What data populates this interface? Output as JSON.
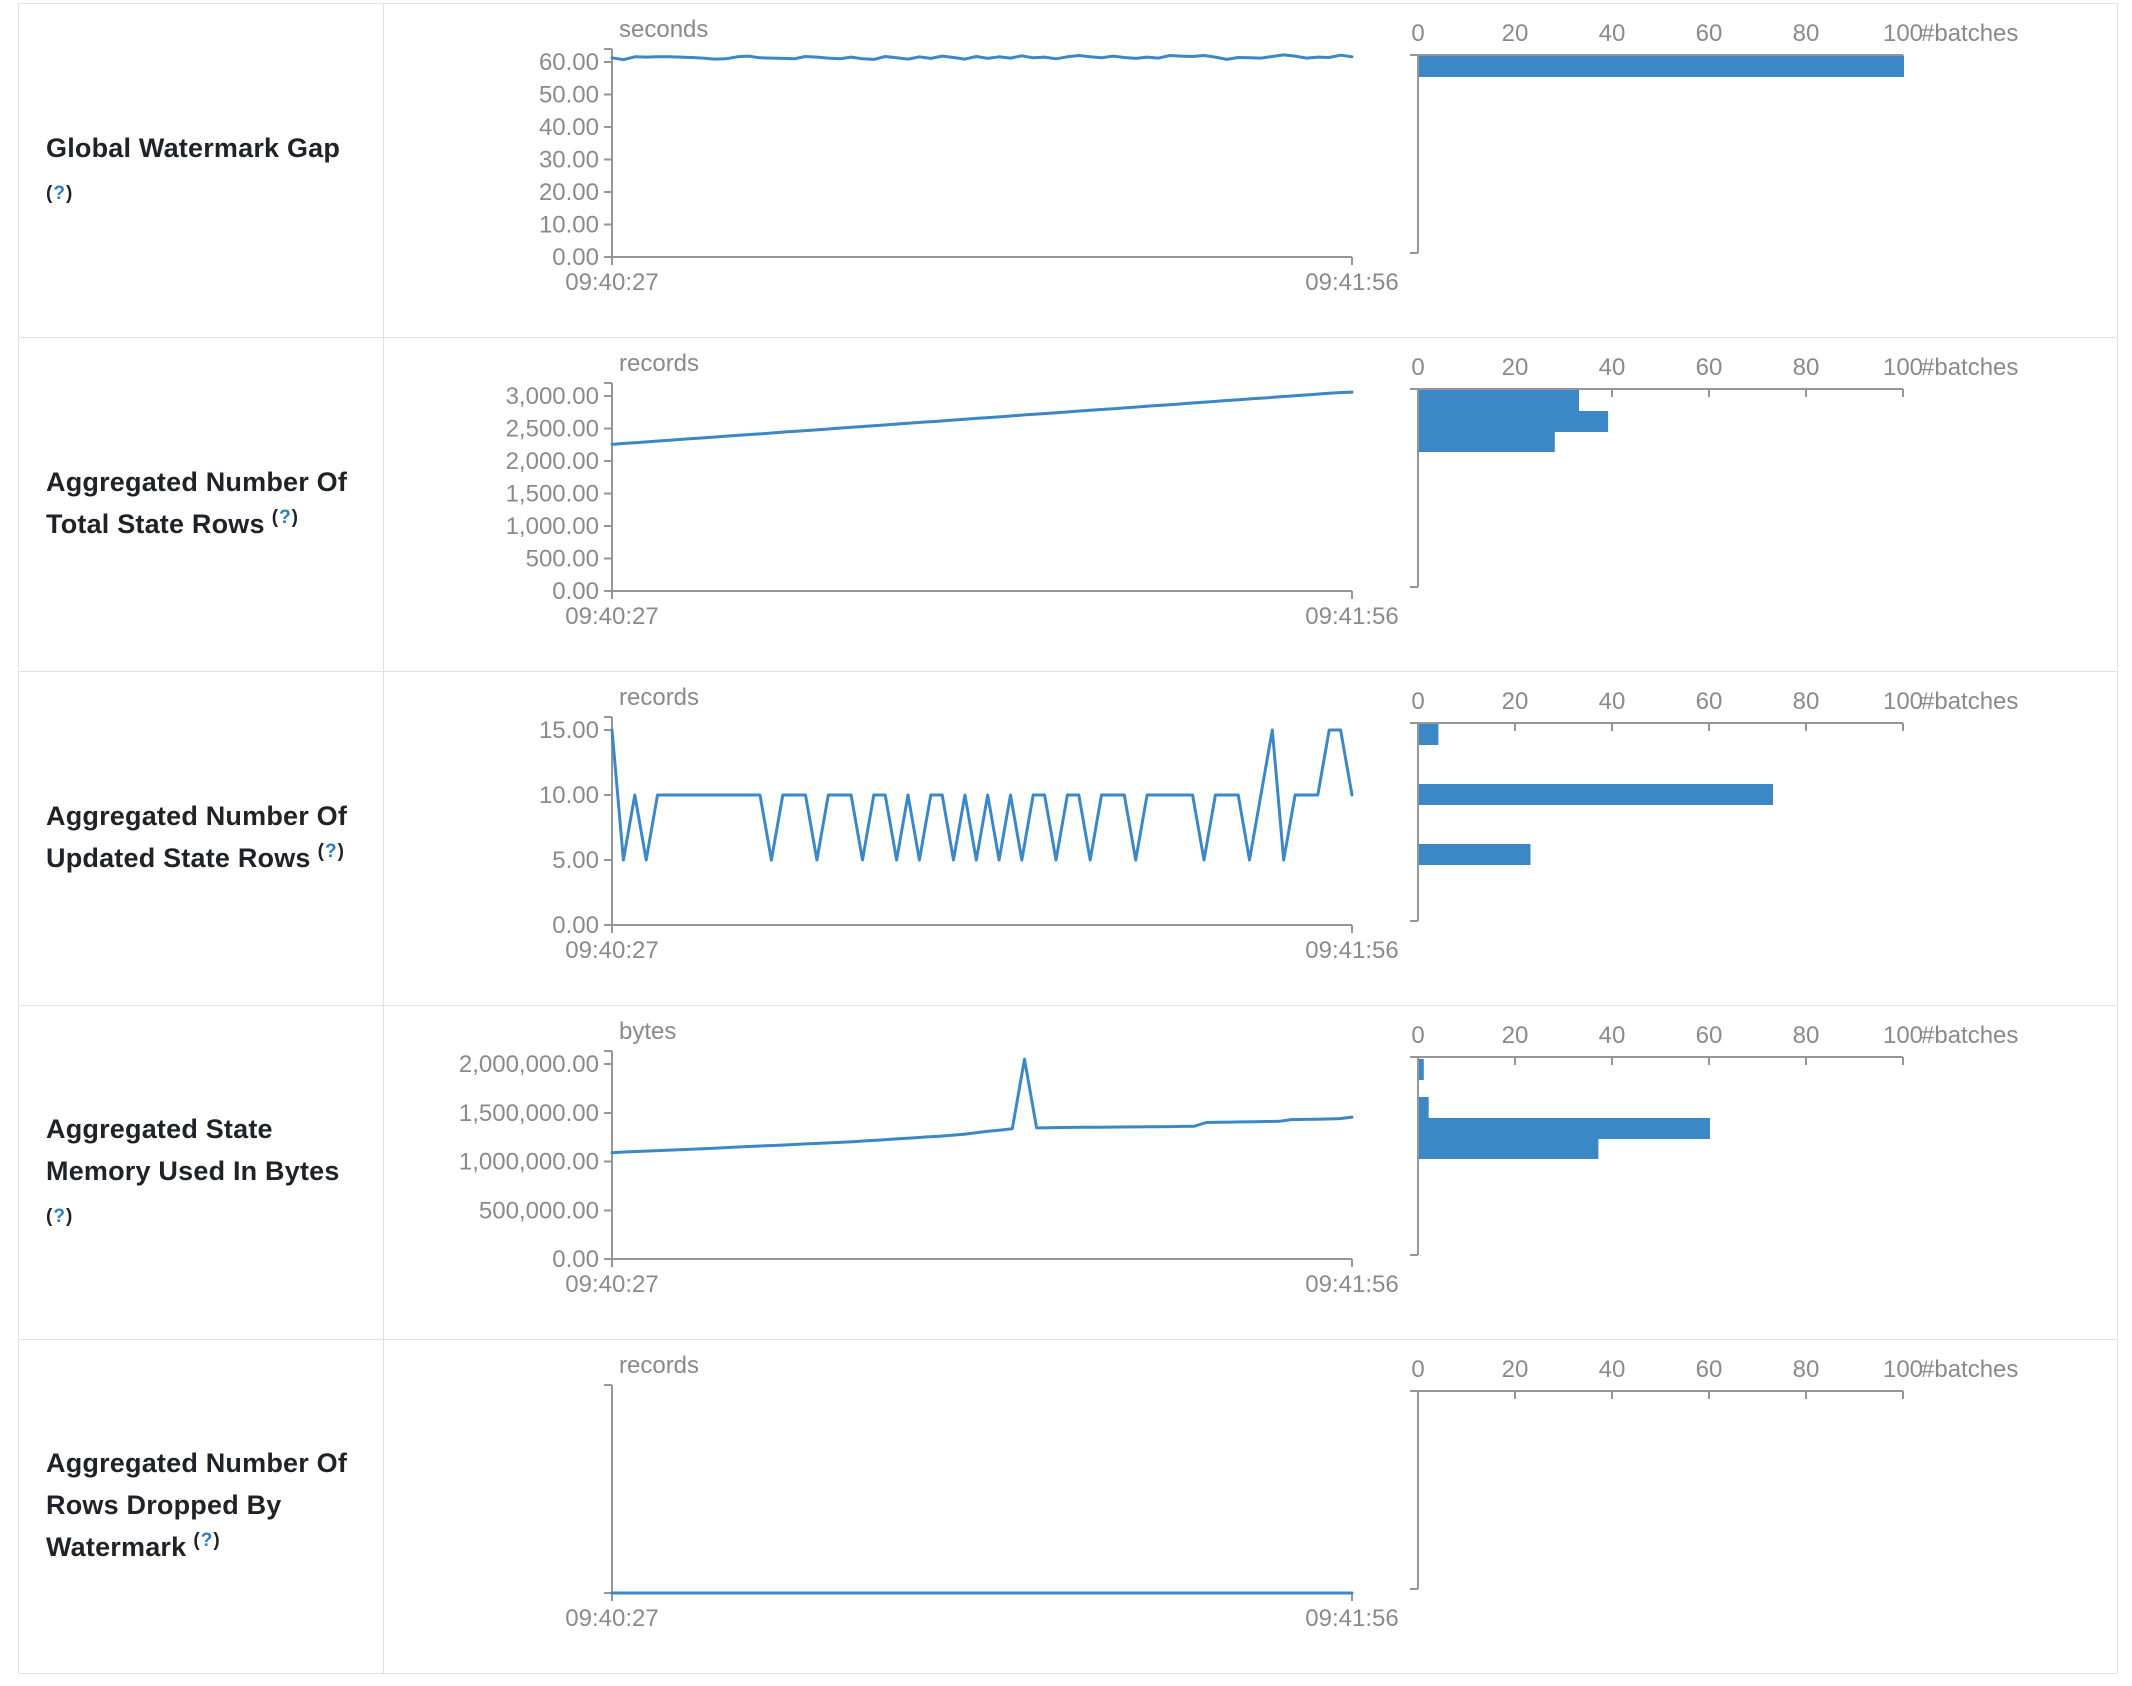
{
  "style": {
    "accent_blue": "#3c87c5",
    "axis_gray": "#969696",
    "tick_text_gray": "#8a8a8a",
    "label_text": "#1f2328",
    "help_blue": "#2b7cc0",
    "border": "#dfe2e7"
  },
  "rows": [
    {
      "label_lines": [
        "Global Watermark Gap"
      ],
      "help_marker": "(?)",
      "help_own_line": true
    },
    {
      "label_lines": [
        "Aggregated Number Of",
        "Total State Rows"
      ],
      "help_marker": "(?)",
      "help_own_line": false
    },
    {
      "label_lines": [
        "Aggregated Number Of",
        "Updated State Rows"
      ],
      "help_marker": "(?)",
      "help_own_line": false
    },
    {
      "label_lines": [
        "Aggregated State",
        "Memory Used In Bytes"
      ],
      "help_marker": "(?)",
      "help_own_line": true
    },
    {
      "label_lines": [
        "Aggregated Number Of",
        "Rows Dropped By",
        "Watermark"
      ],
      "help_marker": "(?)",
      "help_own_line": false
    }
  ],
  "chart_data": [
    {
      "row": "Global Watermark Gap",
      "timeline": {
        "type": "line",
        "unit": "seconds",
        "x_start_label": "09:40:27",
        "x_end_label": "09:41:56",
        "tick_max": 60,
        "ylim": [
          0,
          65
        ],
        "y_ticks": [
          {
            "value": 60,
            "label": "60.00"
          },
          {
            "value": 50,
            "label": "50.00"
          },
          {
            "value": 40,
            "label": "40.00"
          },
          {
            "value": 30,
            "label": "30.00"
          },
          {
            "value": 20,
            "label": "20.00"
          },
          {
            "value": 10,
            "label": "10.00"
          },
          {
            "value": 0,
            "label": "0.00"
          }
        ],
        "values": [
          61.3,
          60.7,
          61.6,
          61.5,
          61.6,
          61.6,
          61.5,
          61.4,
          61.2,
          60.9,
          61.0,
          61.6,
          61.8,
          61.3,
          61.2,
          61.1,
          61.0,
          61.7,
          61.5,
          61.2,
          61.0,
          61.5,
          61.0,
          60.8,
          61.7,
          61.3,
          60.9,
          61.6,
          61.1,
          61.8,
          61.4,
          60.9,
          61.7,
          61.1,
          61.6,
          61.2,
          61.9,
          61.3,
          61.5,
          61.0,
          61.6,
          62.0,
          61.6,
          61.3,
          61.8,
          61.4,
          61.1,
          61.5,
          61.2,
          62.0,
          61.8,
          61.7,
          62.0,
          61.5,
          60.8,
          61.4,
          61.3,
          61.2,
          61.7,
          62.2,
          61.8,
          61.2,
          61.5,
          61.4,
          62.1,
          61.6
        ]
      },
      "histogram": {
        "type": "bar",
        "xlabel": "#batches",
        "x_ticks": [
          0,
          20,
          40,
          60,
          80,
          100
        ],
        "xlim": [
          0,
          100
        ],
        "bars": [
          {
            "count": 100,
            "offset": 0
          }
        ]
      }
    },
    {
      "row": "Aggregated Number Of Total State Rows",
      "timeline": {
        "type": "line",
        "unit": "records",
        "x_start_label": "09:40:27",
        "x_end_label": "09:41:56",
        "tick_max": 3000,
        "ylim": [
          0,
          3200
        ],
        "y_ticks": [
          {
            "value": 3000,
            "label": "3,000.00"
          },
          {
            "value": 2500,
            "label": "2,500.00"
          },
          {
            "value": 2000,
            "label": "2,000.00"
          },
          {
            "value": 1500,
            "label": "1,500.00"
          },
          {
            "value": 1000,
            "label": "1,000.00"
          },
          {
            "value": 500,
            "label": "500.00"
          },
          {
            "value": 0,
            "label": "0.00"
          }
        ],
        "values": [
          2255,
          2270,
          2283,
          2298,
          2310,
          2325,
          2340,
          2352,
          2366,
          2380,
          2394,
          2408,
          2420,
          2435,
          2450,
          2462,
          2476,
          2490,
          2503,
          2517,
          2530,
          2545,
          2558,
          2572,
          2586,
          2600,
          2613,
          2627,
          2640,
          2655,
          2668,
          2682,
          2695,
          2710,
          2723,
          2737,
          2750,
          2764,
          2778,
          2792,
          2805,
          2820,
          2833,
          2847,
          2860,
          2874,
          2888,
          2902,
          2915,
          2930,
          2943,
          2957,
          2970,
          2985,
          2998,
          3012,
          3025,
          3040,
          3052,
          3060
        ]
      },
      "histogram": {
        "type": "bar",
        "xlabel": "#batches",
        "x_ticks": [
          0,
          20,
          40,
          60,
          80,
          100
        ],
        "xlim": [
          0,
          100
        ],
        "bars": [
          {
            "count": 33,
            "offset": 0
          },
          {
            "count": 39,
            "offset": 21
          },
          {
            "count": 28,
            "offset": 41
          }
        ]
      }
    },
    {
      "row": "Aggregated Number Of Updated State Rows",
      "timeline": {
        "type": "line",
        "unit": "records",
        "x_start_label": "09:40:27",
        "x_end_label": "09:41:56",
        "tick_max": 15,
        "ylim": [
          0,
          15.7
        ],
        "y_ticks": [
          {
            "value": 15,
            "label": "15.00"
          },
          {
            "value": 10,
            "label": "10.00"
          },
          {
            "value": 5,
            "label": "5.00"
          },
          {
            "value": 0,
            "label": "0.00"
          }
        ],
        "values": [
          15,
          5,
          10,
          5,
          10,
          10,
          10,
          10,
          10,
          10,
          10,
          10,
          10,
          10,
          5,
          10,
          10,
          10,
          5,
          10,
          10,
          10,
          5,
          10,
          10,
          5,
          10,
          5,
          10,
          10,
          5,
          10,
          5,
          10,
          5,
          10,
          5,
          10,
          10,
          5,
          10,
          10,
          5,
          10,
          10,
          10,
          5,
          10,
          10,
          10,
          10,
          10,
          5,
          10,
          10,
          10,
          5,
          10,
          15,
          5,
          10,
          10,
          10,
          15,
          15,
          10
        ]
      },
      "histogram": {
        "type": "bar",
        "xlabel": "#batches",
        "x_ticks": [
          0,
          20,
          40,
          60,
          80,
          100
        ],
        "xlim": [
          0,
          100
        ],
        "bars": [
          {
            "count": 4,
            "offset": 0
          },
          {
            "count": 73,
            "offset": 60
          },
          {
            "count": 23,
            "offset": 120
          }
        ]
      }
    },
    {
      "row": "Aggregated State Memory Used In Bytes",
      "timeline": {
        "type": "line",
        "unit": "bytes",
        "x_start_label": "09:40:27",
        "x_end_label": "09:41:56",
        "tick_max": 2000000,
        "ylim": [
          0,
          2150000
        ],
        "y_ticks": [
          {
            "value": 2000000,
            "label": "2,000,000.00"
          },
          {
            "value": 1500000,
            "label": "1,500,000.00"
          },
          {
            "value": 1000000,
            "label": "1,000,000.00"
          },
          {
            "value": 500000,
            "label": "500,000.00"
          },
          {
            "value": 0,
            "label": "0.00"
          }
        ],
        "values": [
          1090000,
          1097000,
          1103000,
          1108000,
          1113000,
          1118000,
          1123000,
          1128000,
          1133000,
          1140000,
          1147000,
          1153000,
          1158000,
          1163000,
          1168000,
          1174000,
          1180000,
          1186000,
          1192000,
          1198000,
          1204000,
          1212000,
          1220000,
          1228000,
          1236000,
          1244000,
          1252000,
          1260000,
          1270000,
          1280000,
          1295000,
          1310000,
          1322000,
          1335000,
          2050000,
          1345000,
          1347000,
          1349000,
          1350000,
          1351000,
          1352000,
          1353000,
          1354000,
          1355000,
          1356000,
          1357000,
          1358000,
          1360000,
          1362000,
          1400000,
          1402000,
          1404000,
          1406000,
          1408000,
          1410000,
          1412000,
          1430000,
          1432000,
          1434000,
          1436000,
          1440000,
          1455000
        ]
      },
      "histogram": {
        "type": "bar",
        "xlabel": "#batches",
        "x_ticks": [
          0,
          20,
          40,
          60,
          80,
          100
        ],
        "xlim": [
          0,
          100
        ],
        "bars": [
          {
            "count": 1,
            "offset": 1
          },
          {
            "count": 2,
            "offset": 39
          },
          {
            "count": 60,
            "offset": 60
          },
          {
            "count": 37,
            "offset": 80
          }
        ]
      }
    },
    {
      "row": "Aggregated Number Of Rows Dropped By Watermark",
      "timeline": {
        "type": "line",
        "unit": "records",
        "x_start_label": "09:40:27",
        "x_end_label": "09:41:56",
        "tick_max": 1,
        "ylim": [
          0,
          1
        ],
        "y_ticks": [],
        "values": [
          0,
          0,
          0,
          0,
          0,
          0,
          0,
          0,
          0,
          0,
          0,
          0,
          0,
          0,
          0,
          0,
          0,
          0,
          0,
          0,
          0,
          0,
          0,
          0,
          0,
          0,
          0,
          0,
          0,
          0,
          0,
          0,
          0,
          0,
          0,
          0,
          0,
          0,
          0,
          0
        ]
      },
      "histogram": {
        "type": "bar",
        "xlabel": "#batches",
        "x_ticks": [
          0,
          20,
          40,
          60,
          80,
          100
        ],
        "xlim": [
          0,
          100
        ],
        "bars": []
      }
    }
  ]
}
